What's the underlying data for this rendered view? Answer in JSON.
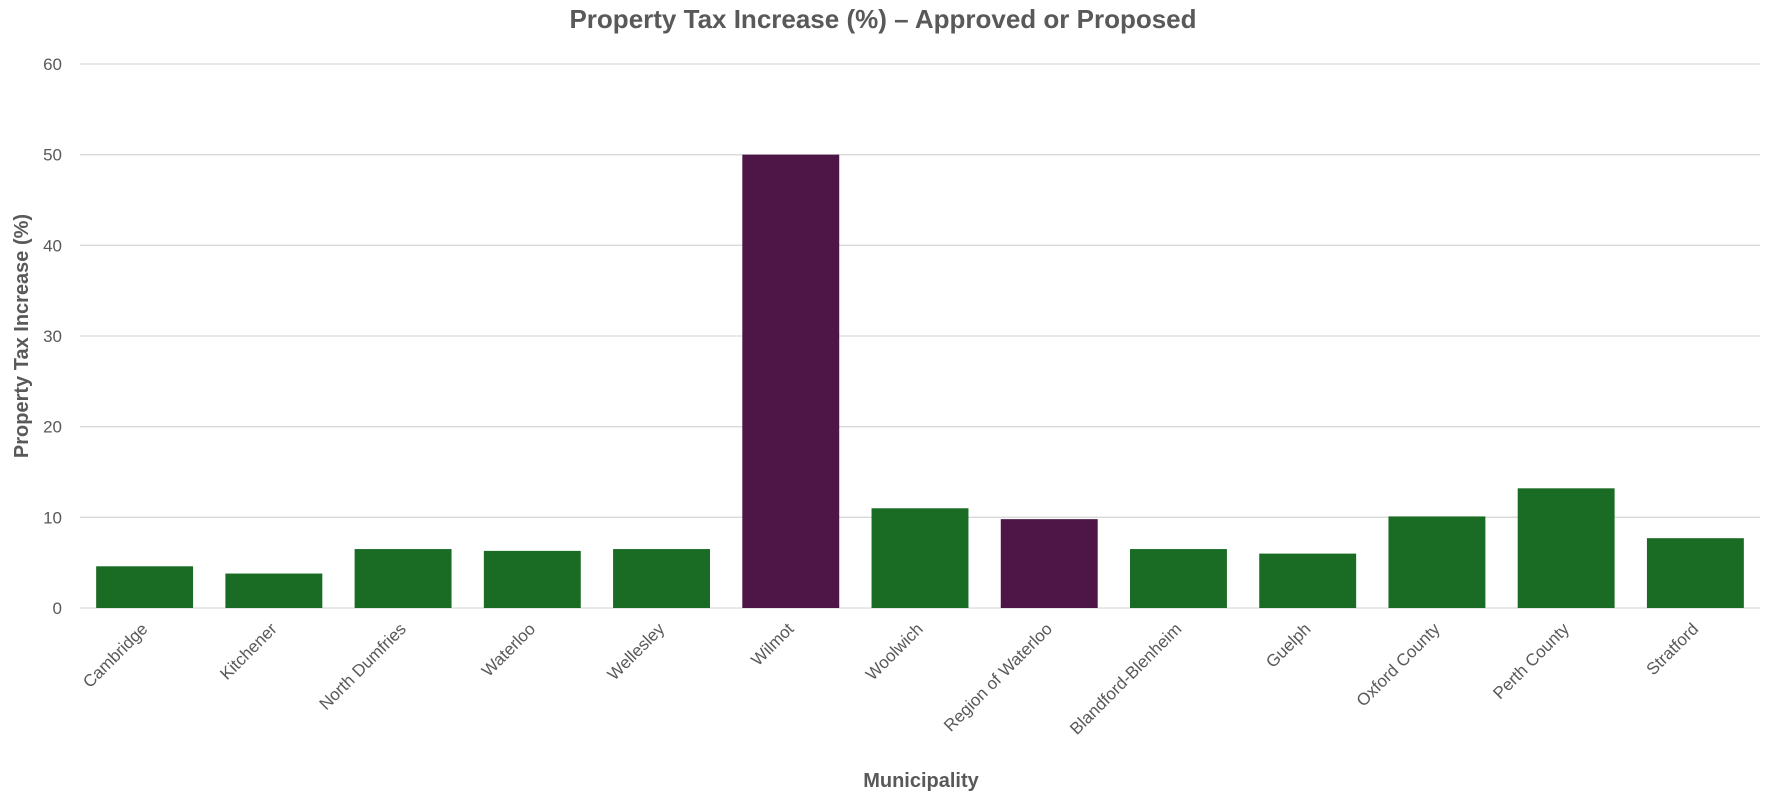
{
  "chart_data": {
    "type": "bar",
    "title": "Property Tax Increase (%) – Approved or Proposed",
    "xlabel": "Municipality",
    "ylabel": "Property Tax Increase (%)",
    "ylim": [
      0,
      60
    ],
    "yticks": [
      0,
      10,
      20,
      30,
      40,
      50,
      60
    ],
    "grid": true,
    "legend": "none",
    "categories": [
      "Cambridge",
      "Kitchener",
      "North Dumfries",
      "Waterloo",
      "Wellesley",
      "Wilmot",
      "Woolwich",
      "Region of Waterloo",
      "Blandford-Blenheim",
      "Guelph",
      "Oxford County",
      "Perth County",
      "Stratford"
    ],
    "values": [
      4.6,
      3.8,
      6.5,
      6.3,
      6.5,
      50.0,
      11.0,
      9.8,
      6.5,
      6.0,
      10.1,
      13.2,
      7.7
    ],
    "bar_colors": [
      "#1a6b24",
      "#1a6b24",
      "#1a6b24",
      "#1a6b24",
      "#1a6b24",
      "#4d1646",
      "#1a6b24",
      "#4d1646",
      "#1a6b24",
      "#1a6b24",
      "#1a6b24",
      "#1a6b24",
      "#1a6b24"
    ]
  }
}
